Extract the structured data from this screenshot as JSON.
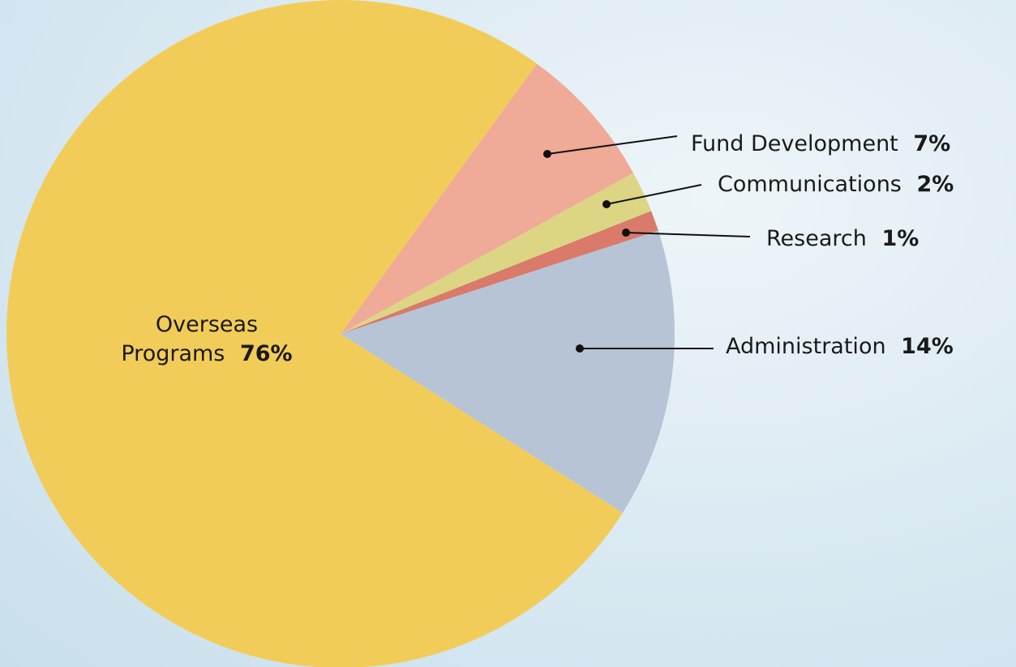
{
  "chart_data": {
    "type": "pie",
    "categories": [
      "Fund Development",
      "Communications",
      "Research",
      "Administration",
      "Overseas Programs"
    ],
    "values": [
      7,
      2,
      1,
      14,
      76
    ],
    "value_labels": [
      "7%",
      "2%",
      "1%",
      "14%",
      "76%"
    ],
    "colors": [
      "#f0aa98",
      "#dcd584",
      "#d97a6a",
      "#b7c4d6",
      "#f2cc58"
    ]
  }
}
